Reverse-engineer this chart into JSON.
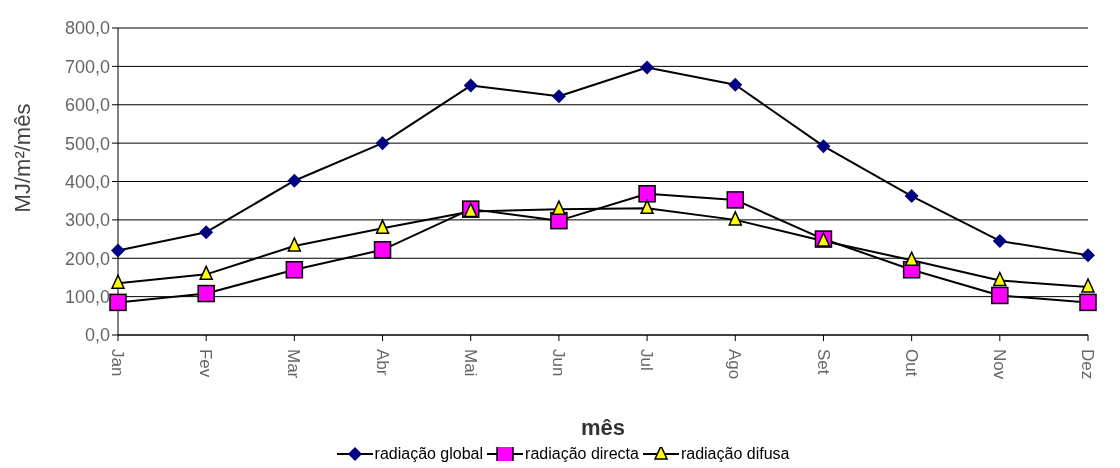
{
  "chart_data": {
    "type": "line",
    "xlabel": "mês",
    "ylabel": "MJ/m²/mês",
    "categories": [
      "Jan",
      "Fev",
      "Mar",
      "Abr",
      "Mai",
      "Jun",
      "Jul",
      "Ago",
      "Set",
      "Out",
      "Nov",
      "Dez"
    ],
    "series": [
      {
        "name": "radiação global",
        "color": "#000080",
        "marker": "diamond",
        "values": [
          220,
          268,
          402,
          500,
          650,
          622,
          697,
          652,
          492,
          362,
          245,
          208
        ]
      },
      {
        "name": "radiação directa",
        "color": "#ff00ff",
        "marker": "square",
        "values": [
          85,
          108,
          170,
          222,
          328,
          298,
          368,
          352,
          250,
          170,
          103,
          85
        ]
      },
      {
        "name": "radiação difusa",
        "color": "#ffff00",
        "marker": "triangle",
        "values": [
          135,
          158,
          232,
          278,
          322,
          328,
          330,
          300,
          245,
          195,
          142,
          125
        ]
      }
    ],
    "ylim": [
      0,
      800
    ],
    "yticks": [
      {
        "value": 0,
        "label": "0,0"
      },
      {
        "value": 100,
        "label": "100,0"
      },
      {
        "value": 200,
        "label": "200,0"
      },
      {
        "value": 300,
        "label": "300,0"
      },
      {
        "value": 400,
        "label": "400,0"
      },
      {
        "value": 500,
        "label": "500,0"
      },
      {
        "value": 600,
        "label": "600,0"
      },
      {
        "value": 700,
        "label": "700,0"
      },
      {
        "value": 800,
        "label": "800,0"
      }
    ],
    "grid": "y",
    "legend": "bottom",
    "line_style": "solid"
  }
}
